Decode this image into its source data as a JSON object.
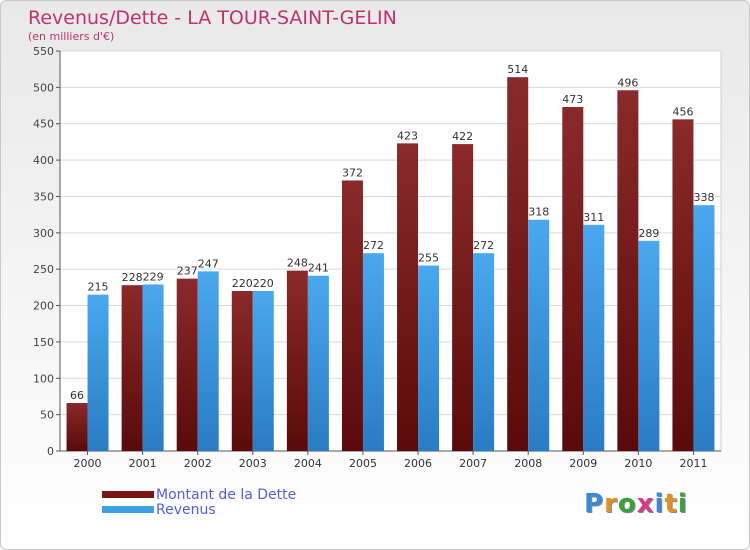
{
  "header": {
    "title": "Revenus/Dette - LA TOUR-SAINT-GELIN",
    "subtitle": "(en milliers d'€)"
  },
  "legend": {
    "items": [
      {
        "label": "Montant de la Dette",
        "color": "#7a1515"
      },
      {
        "label": "Revenus",
        "color": "#3f9fe4"
      }
    ]
  },
  "logo": {
    "letters": [
      "P",
      "r",
      "o",
      "x",
      "i",
      "t",
      "i"
    ],
    "colors": [
      "#3a8ad6",
      "#e0902a",
      "#3aa040",
      "#d63a8a",
      "#3a8ad6",
      "#e0902a",
      "#3aa040"
    ]
  },
  "chart_data": {
    "type": "bar",
    "title": "Revenus/Dette - LA TOUR-SAINT-GELIN",
    "subtitle": "(en milliers d'€)",
    "categories": [
      "2000",
      "2001",
      "2002",
      "2003",
      "2004",
      "2005",
      "2006",
      "2007",
      "2008",
      "2009",
      "2010",
      "2011"
    ],
    "series": [
      {
        "name": "Montant de la Dette",
        "color": "#7a1515",
        "values": [
          66,
          228,
          237,
          220,
          248,
          372,
          423,
          422,
          514,
          473,
          496,
          456
        ]
      },
      {
        "name": "Revenus",
        "color": "#3f9fe4",
        "values": [
          215,
          229,
          247,
          220,
          241,
          272,
          255,
          272,
          318,
          311,
          289,
          338
        ]
      }
    ],
    "ylim": [
      0,
      550
    ],
    "yticks": [
      0,
      50,
      100,
      150,
      200,
      250,
      300,
      350,
      400,
      450,
      500,
      550
    ],
    "grid": true,
    "legend_position": "bottom-left"
  }
}
